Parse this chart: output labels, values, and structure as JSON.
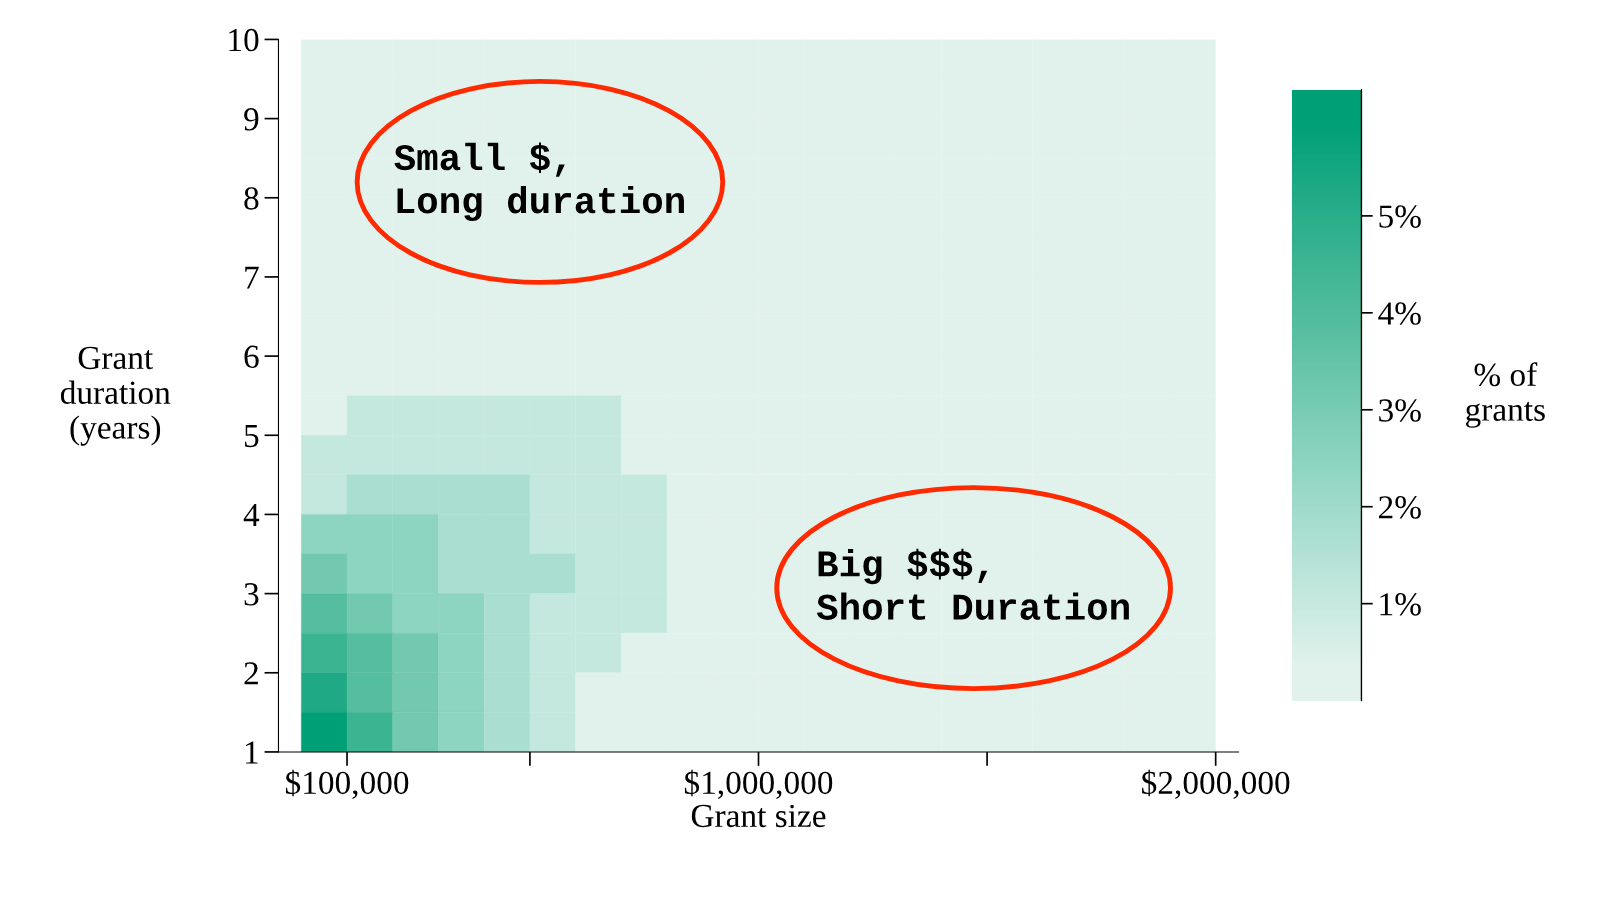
{
  "chart_data": {
    "type": "heatmap",
    "xlabel": "Grant size",
    "ylabel": "Grant\nduration\n(years)",
    "clabel": "% of\ngrants",
    "x": [
      50000,
      150000,
      250000,
      350000,
      450000,
      550000,
      650000,
      750000,
      850000,
      950000,
      1050000,
      1150000,
      1250000,
      1350000,
      1450000,
      1550000,
      1650000,
      1750000,
      1850000,
      1950000
    ],
    "cells": [
      [
        0.35,
        0.35,
        0.35,
        0.35,
        0.35,
        0.35,
        0.35,
        0.35,
        0.35,
        0.35,
        0.35,
        0.35,
        0.35,
        0.35,
        0.35,
        0.35,
        0.35,
        0.35,
        0.35,
        0.35
      ],
      [
        0.35,
        0.35,
        0.35,
        0.35,
        0.35,
        0.35,
        0.35,
        0.35,
        0.35,
        0.35,
        0.35,
        0.35,
        0.35,
        0.35,
        0.35,
        0.35,
        0.35,
        0.35,
        0.35,
        0.35
      ],
      [
        0.35,
        0.35,
        0.35,
        0.35,
        0.35,
        0.35,
        0.35,
        0.35,
        0.35,
        0.35,
        0.35,
        0.35,
        0.35,
        0.35,
        0.35,
        0.35,
        0.35,
        0.35,
        0.35,
        0.35
      ],
      [
        0.35,
        0.35,
        0.35,
        0.35,
        0.35,
        0.35,
        0.35,
        0.35,
        0.35,
        0.35,
        0.35,
        0.35,
        0.35,
        0.35,
        0.35,
        0.35,
        0.35,
        0.35,
        0.35,
        0.35
      ],
      [
        0.35,
        0.35,
        0.35,
        0.35,
        0.35,
        0.35,
        0.35,
        0.35,
        0.35,
        0.35,
        0.35,
        0.35,
        0.35,
        0.35,
        0.35,
        0.35,
        0.35,
        0.35,
        0.35,
        0.35
      ],
      [
        0.35,
        0.35,
        0.35,
        0.35,
        0.35,
        0.35,
        0.35,
        0.35,
        0.35,
        0.35,
        0.35,
        0.35,
        0.35,
        0.35,
        0.35,
        0.35,
        0.35,
        0.35,
        0.35,
        0.35
      ],
      [
        0.35,
        0.35,
        0.35,
        0.35,
        0.35,
        0.35,
        0.35,
        0.35,
        0.35,
        0.35,
        0.35,
        0.35,
        0.35,
        0.35,
        0.35,
        0.35,
        0.35,
        0.35,
        0.35,
        0.35
      ],
      [
        0.35,
        0.35,
        0.35,
        0.35,
        0.35,
        0.35,
        0.35,
        0.35,
        0.35,
        0.35,
        0.35,
        0.35,
        0.35,
        0.35,
        0.35,
        0.35,
        0.35,
        0.35,
        0.35,
        0.35
      ],
      [
        0.35,
        0.35,
        0.35,
        0.35,
        0.35,
        0.35,
        0.35,
        0.35,
        0.35,
        0.35,
        0.35,
        0.35,
        0.35,
        0.35,
        0.35,
        0.35,
        0.35,
        0.35,
        0.35,
        0.35
      ],
      [
        0.35,
        1.05,
        1.05,
        1.05,
        1.05,
        1.05,
        1.05,
        0.35,
        0.35,
        0.35,
        0.35,
        0.35,
        0.35,
        0.35,
        0.35,
        0.35,
        0.35,
        0.35,
        0.35,
        0.35
      ],
      [
        1.05,
        1.05,
        1.05,
        1.05,
        1.05,
        1.05,
        1.05,
        0.35,
        0.35,
        0.35,
        0.35,
        0.35,
        0.35,
        0.35,
        0.35,
        0.35,
        0.35,
        0.35,
        0.35,
        0.35
      ],
      [
        1.05,
        1.75,
        1.75,
        1.75,
        1.75,
        1.05,
        1.05,
        1.05,
        0.35,
        0.35,
        0.35,
        0.35,
        0.35,
        0.35,
        0.35,
        0.35,
        0.35,
        0.35,
        0.35,
        0.35
      ],
      [
        2.45,
        2.45,
        2.45,
        1.75,
        1.75,
        1.05,
        1.05,
        1.05,
        0.35,
        0.35,
        0.35,
        0.35,
        0.35,
        0.35,
        0.35,
        0.35,
        0.35,
        0.35,
        0.35,
        0.35
      ],
      [
        3.15,
        2.45,
        2.45,
        1.75,
        1.75,
        1.75,
        1.05,
        1.05,
        0.35,
        0.35,
        0.35,
        0.35,
        0.35,
        0.35,
        0.35,
        0.35,
        0.35,
        0.35,
        0.35,
        0.35
      ],
      [
        3.85,
        3.15,
        2.45,
        2.45,
        1.75,
        1.05,
        1.05,
        1.05,
        0.35,
        0.35,
        0.35,
        0.35,
        0.35,
        0.35,
        0.35,
        0.35,
        0.35,
        0.35,
        0.35,
        0.35
      ],
      [
        4.55,
        3.85,
        3.15,
        2.45,
        1.75,
        1.05,
        1.05,
        0.35,
        0.35,
        0.35,
        0.35,
        0.35,
        0.35,
        0.35,
        0.35,
        0.35,
        0.35,
        0.35,
        0.35,
        0.35
      ],
      [
        5.25,
        3.85,
        3.15,
        2.45,
        1.75,
        1.05,
        0.35,
        0.35,
        0.35,
        0.35,
        0.35,
        0.35,
        0.35,
        0.35,
        0.35,
        0.35,
        0.35,
        0.35,
        0.35,
        0.35
      ],
      [
        5.95,
        4.55,
        3.15,
        2.45,
        1.75,
        1.05,
        0.35,
        0.35,
        0.35,
        0.35,
        0.35,
        0.35,
        0.35,
        0.35,
        0.35,
        0.35,
        0.35,
        0.35,
        0.35,
        0.35
      ]
    ],
    "colors": [
      "#e1f2ec",
      "#c5e8de",
      "#a9ded0",
      "#8dd4c1",
      "#72c9b0",
      "#56bea0",
      "#3bb492",
      "#1faa85",
      "#00a077"
    ],
    "clim": [
      0,
      6.3
    ],
    "cticks": [
      {
        "value": 1,
        "label": "1%"
      },
      {
        "value": 2,
        "label": "2%"
      },
      {
        "value": 3,
        "label": "3%"
      },
      {
        "value": 4,
        "label": "4%"
      },
      {
        "value": 5,
        "label": "5%"
      }
    ],
    "xlim": [
      -50000,
      2050000
    ],
    "ylim": [
      1,
      10
    ],
    "xticks": [
      {
        "value": 100000,
        "label": "$100,000"
      },
      {
        "value": 500000,
        "label": null
      },
      {
        "value": 1000000,
        "label": "$1,000,000"
      },
      {
        "value": 1500000,
        "label": null
      },
      {
        "value": 2000000,
        "label": "$2,000,000"
      }
    ],
    "yticks": [
      1,
      2,
      3,
      4,
      5,
      6,
      7,
      8,
      9,
      10
    ],
    "annotations": [
      "Small $,\nLong duration",
      "Big $$$,\nShort Duration"
    ],
    "grid": false
  }
}
